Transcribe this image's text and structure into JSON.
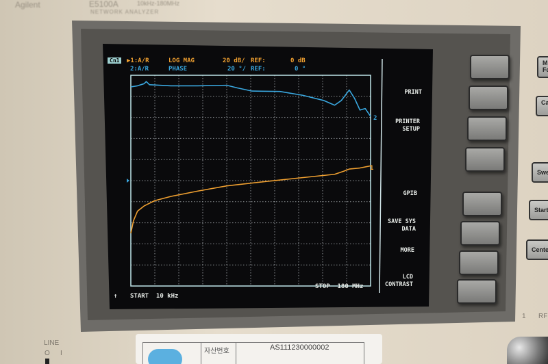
{
  "instrument": {
    "brand": "Agilent",
    "model": "E5100A",
    "range": "10kHz-180MHz",
    "type": "NETWORK ANALYZER"
  },
  "screen": {
    "channel_indicator": "Cn1",
    "trace1": {
      "label": "▶1:A/R",
      "format": "LOG MAG",
      "scale": "20 dB/",
      "ref_label": "REF:",
      "ref_value": "0 dB",
      "color": "#f0a030"
    },
    "trace2": {
      "label": "2:A/R",
      "format": "PHASE",
      "scale": "20 °/",
      "ref_label": "REF:",
      "ref_value": "0 °",
      "color": "#3aa8e0"
    },
    "start": "START  10 kHz",
    "stop": "STOP  180 MHz",
    "arrow": "↑",
    "marker1": "1",
    "marker2": "2",
    "softkeys": [
      "PRINT",
      "PRINTER SETUP",
      "",
      "",
      "GPIB",
      "SAVE SYS DATA",
      "MORE",
      "LCD CONTRAST"
    ]
  },
  "chart_data": {
    "type": "line",
    "xlabel": "",
    "ylabel": "",
    "x_unit": "MHz",
    "xlim": [
      0.01,
      180
    ],
    "grid": true,
    "divisions": {
      "x": 10,
      "y": 10
    },
    "series": [
      {
        "name": "1:A/R LOG MAG",
        "unit": "dB",
        "ylim": [
          -100,
          100
        ],
        "color": "#f0a030",
        "x": [
          0.01,
          2,
          5,
          10,
          18,
          30,
          50,
          72,
          100,
          130,
          153,
          160,
          164,
          172,
          180
        ],
        "y": [
          -50,
          -38,
          -29,
          -24,
          -19,
          -15,
          -10,
          -5,
          -1,
          3,
          6,
          9,
          11,
          12,
          14
        ]
      },
      {
        "name": "2:A/R PHASE",
        "unit": "deg",
        "ylim": [
          -100,
          100
        ],
        "color": "#3aa8e0",
        "x": [
          0.01,
          5,
          10,
          11.6,
          14,
          30,
          50,
          72,
          80,
          91,
          112,
          129,
          145,
          153,
          158,
          164,
          168,
          172,
          176,
          180
        ],
        "y": [
          89,
          90,
          92,
          94,
          91,
          90,
          90,
          90.5,
          88,
          85,
          84.6,
          81,
          76,
          71.6,
          76,
          86,
          78,
          67,
          68.4,
          61
        ]
      }
    ]
  },
  "front_panel": {
    "keys": [
      "M Fc",
      "Ca",
      "Swe",
      "Start",
      "Cente"
    ],
    "line_label": "LINE",
    "line_off": "O",
    "line_on": "I",
    "port_number": "1",
    "port_label": "RF"
  },
  "asset_tag": {
    "label": "자산번호",
    "number": "AS111230000002"
  }
}
